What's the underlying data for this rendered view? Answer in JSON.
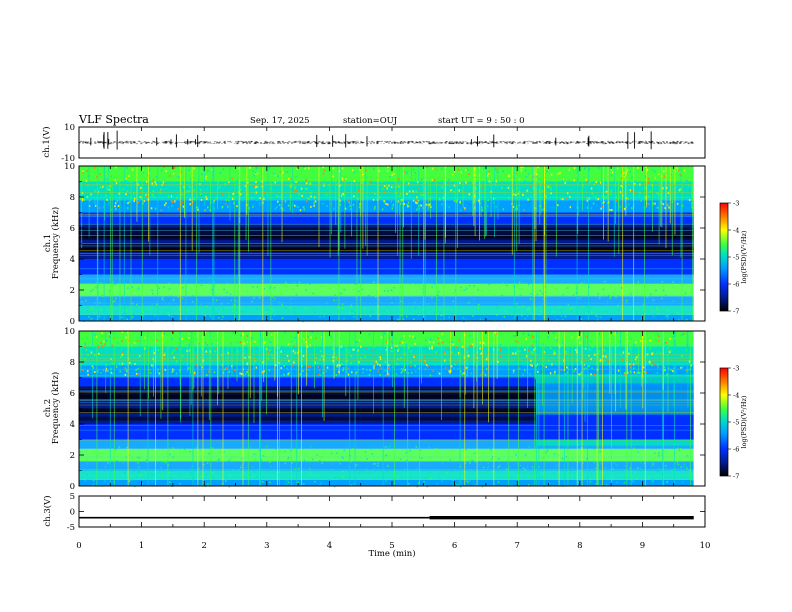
{
  "header": {
    "title": "VLF Spectra",
    "date": "Sep. 17, 2025",
    "station": "station=OUJ",
    "start_ut": "start  UT =   9 : 50 : 0"
  },
  "colors": {
    "spectrum_scale": [
      "#000000",
      "#001a8c",
      "#0030ff",
      "#00a0ff",
      "#00e0c0",
      "#40ff40",
      "#ffff00",
      "#ff8000",
      "#ff0000"
    ]
  },
  "chart_data": [
    {
      "type": "line",
      "name": "ch1-waveform",
      "ylabel": "ch.1(V)",
      "y_ticks": [
        "10",
        "-10"
      ],
      "ylim": [
        -10,
        10
      ],
      "baseline": 0
    },
    {
      "type": "heatmap",
      "name": "ch1-spectrogram",
      "ylabel": "ch.1\nFrequency  (kHz)",
      "ylabel_line1": "ch.1",
      "ylabel_line2": "Frequency  (kHz)",
      "y_ticks": [
        "0",
        "2",
        "4",
        "6",
        "8",
        "10"
      ],
      "ylim": [
        0,
        10
      ],
      "colorbar": {
        "label": "log(PSD)(V²/Hz)",
        "ticks": [
          "-3",
          "-4",
          "-5",
          "-6",
          "-7"
        ],
        "range": [
          -7,
          -3
        ]
      }
    },
    {
      "type": "heatmap",
      "name": "ch2-spectrogram",
      "ylabel": "ch.2\nFrequency  (kHz)",
      "ylabel_line1": "ch.2",
      "ylabel_line2": "Frequency  (kHz)",
      "y_ticks": [
        "0",
        "2",
        "4",
        "6",
        "8",
        "10"
      ],
      "ylim": [
        0,
        10
      ],
      "colorbar": {
        "label": "log(PSD)(V²/Hz)",
        "ticks": [
          "-3",
          "-4",
          "-5",
          "-6",
          "-7"
        ],
        "range": [
          -7,
          -3
        ]
      },
      "regime_change_min": 7.3
    },
    {
      "type": "line",
      "name": "ch3-signal",
      "ylabel": "ch.3(V)",
      "y_ticks": [
        "5",
        "0",
        "-5"
      ],
      "ylim": [
        -5,
        5
      ],
      "level": -2,
      "thick_from_min": 5.6
    }
  ],
  "x_axis": {
    "label": "Time  (min)",
    "ticks": [
      "0",
      "1",
      "2",
      "3",
      "4",
      "5",
      "6",
      "7",
      "8",
      "9",
      "10"
    ],
    "xlim": [
      0,
      10
    ],
    "data_end_min": 9.82
  }
}
